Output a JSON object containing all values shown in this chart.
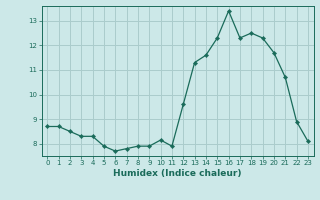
{
  "x": [
    0,
    1,
    2,
    3,
    4,
    5,
    6,
    7,
    8,
    9,
    10,
    11,
    12,
    13,
    14,
    15,
    16,
    17,
    18,
    19,
    20,
    21,
    22,
    23
  ],
  "y": [
    8.7,
    8.7,
    8.5,
    8.3,
    8.3,
    7.9,
    7.7,
    7.8,
    7.9,
    7.9,
    8.15,
    7.9,
    9.6,
    11.3,
    11.6,
    12.3,
    13.4,
    12.3,
    12.5,
    12.3,
    11.7,
    10.7,
    8.9,
    8.1
  ],
  "xlabel": "Humidex (Indice chaleur)",
  "xlim_min": -0.5,
  "xlim_max": 23.5,
  "ylim_min": 7.5,
  "ylim_max": 13.6,
  "yticks": [
    8,
    9,
    10,
    11,
    12,
    13
  ],
  "xticks": [
    0,
    1,
    2,
    3,
    4,
    5,
    6,
    7,
    8,
    9,
    10,
    11,
    12,
    13,
    14,
    15,
    16,
    17,
    18,
    19,
    20,
    21,
    22,
    23
  ],
  "line_color": "#1a6b5a",
  "marker": "D",
  "marker_size": 2.2,
  "bg_color": "#cce8e8",
  "grid_color": "#aacccc",
  "tick_color": "#1a6b5a",
  "xlabel_color": "#1a6b5a",
  "tick_fontsize": 5,
  "xlabel_fontsize": 6.5
}
